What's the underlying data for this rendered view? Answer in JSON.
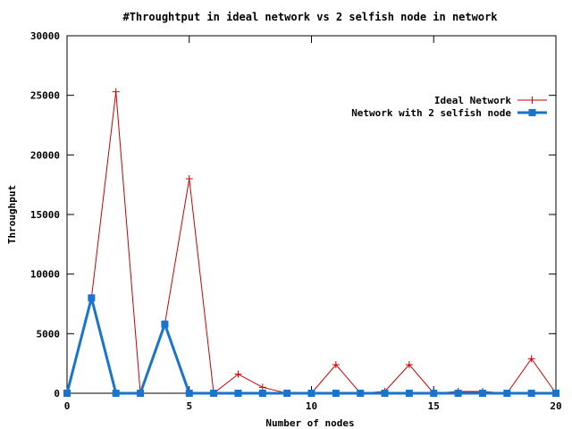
{
  "chart_data": {
    "type": "line",
    "title": "#Throughtput in ideal network vs 2 selfish node in network",
    "xlabel": "Number of nodes",
    "ylabel": "Throughput",
    "xlim": [
      0,
      20
    ],
    "ylim": [
      0,
      30000
    ],
    "xticks": [
      0,
      5,
      10,
      15,
      20
    ],
    "yticks": [
      0,
      5000,
      10000,
      15000,
      20000,
      25000,
      30000
    ],
    "grid": false,
    "legend_position": "top-right",
    "x": [
      0,
      1,
      2,
      3,
      4,
      5,
      6,
      7,
      8,
      9,
      10,
      11,
      12,
      13,
      14,
      15,
      16,
      17,
      18,
      19,
      20
    ],
    "series": [
      {
        "name": "Ideal Network",
        "color": "#cc0000",
        "marker": "plus",
        "values": [
          0,
          8000,
          25300,
          0,
          5800,
          18000,
          0,
          1600,
          500,
          0,
          0,
          2400,
          0,
          150,
          2400,
          0,
          150,
          150,
          0,
          2900,
          0
        ]
      },
      {
        "name": "Network with 2 selfish node",
        "color": "#1874cd",
        "marker": "square",
        "values": [
          0,
          8000,
          0,
          0,
          5800,
          0,
          0,
          0,
          0,
          0,
          0,
          0,
          0,
          0,
          0,
          0,
          0,
          0,
          0,
          0,
          0
        ]
      }
    ]
  }
}
